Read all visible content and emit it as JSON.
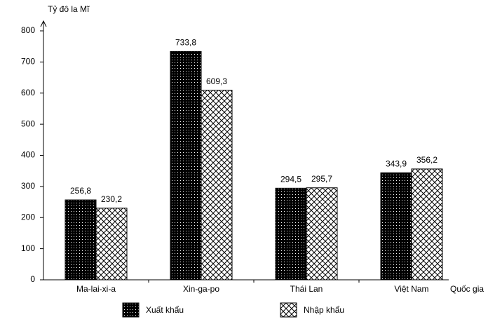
{
  "chart_data": {
    "type": "bar",
    "y_label": "Tỷ đô la Mĩ",
    "x_label": "Quốc gia",
    "categories": [
      "Ma-lai-xi-a",
      "Xin-ga-po",
      "Thái Lan",
      "Việt Nam"
    ],
    "series": [
      {
        "name": "Xuất khẩu",
        "color": "#000000",
        "pattern": "dots",
        "values": [
          256.8,
          733.8,
          294.5,
          343.9
        ],
        "value_labels": [
          "256,8",
          "733,8",
          "294,5",
          "343,9"
        ]
      },
      {
        "name": "Nhập khẩu",
        "color": "#ffffff",
        "pattern": "crosshatch",
        "values": [
          230.2,
          609.3,
          295.7,
          356.2
        ],
        "value_labels": [
          "230,2",
          "609,3",
          "295,7",
          "356,2"
        ]
      }
    ],
    "ylim": [
      0,
      800
    ],
    "yticks": [
      0,
      100,
      200,
      300,
      400,
      500,
      600,
      700,
      800
    ],
    "grid": false
  }
}
